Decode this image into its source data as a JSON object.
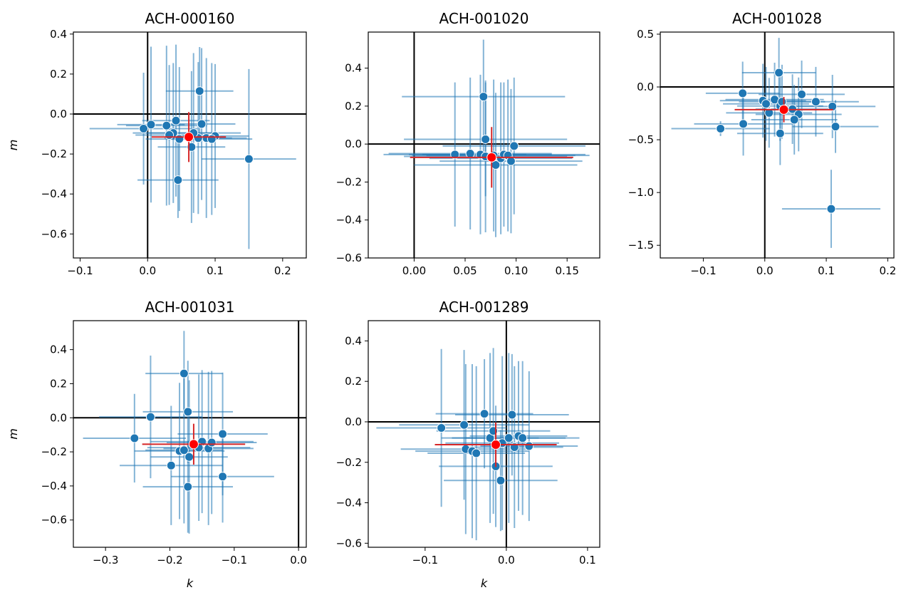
{
  "colors": {
    "point": "#1f77b4",
    "errorbar": "#1f77b4",
    "mean": "#ff0000",
    "mean_errorbar": "#d62728",
    "zero_line": "#000000"
  },
  "chart_data": [
    {
      "type": "scatter",
      "title": "ACH-000160",
      "xlabel": "",
      "ylabel": "m",
      "xlim": [
        -0.11,
        0.235
      ],
      "ylim": [
        -0.72,
        0.41
      ],
      "xticks": [
        -0.1,
        0.0,
        0.1,
        0.2
      ],
      "xtick_labels": [
        "−0.1",
        "0.0",
        "0.1",
        "0.2"
      ],
      "yticks": [
        -0.6,
        -0.4,
        -0.2,
        0.0,
        0.2,
        0.4
      ],
      "ytick_labels": [
        "−0.6",
        "−0.4",
        "−0.2",
        "0.0",
        "0.2",
        "0.4"
      ],
      "mean": {
        "x": 0.061,
        "y": -0.115,
        "xerr": 0.055,
        "yerr": 0.125
      },
      "points": [
        {
          "x": 0.077,
          "y": 0.115,
          "xerr": 0.05,
          "yerr": 0.22
        },
        {
          "x": -0.006,
          "y": -0.073,
          "xerr": 0.08,
          "yerr": 0.28
        },
        {
          "x": 0.005,
          "y": -0.053,
          "xerr": 0.05,
          "yerr": 0.39
        },
        {
          "x": 0.028,
          "y": -0.058,
          "xerr": 0.06,
          "yerr": 0.4
        },
        {
          "x": 0.042,
          "y": -0.033,
          "xerr": 0.05,
          "yerr": 0.38
        },
        {
          "x": 0.08,
          "y": -0.05,
          "xerr": 0.05,
          "yerr": 0.38
        },
        {
          "x": 0.038,
          "y": -0.095,
          "xerr": 0.06,
          "yerr": 0.35
        },
        {
          "x": 0.032,
          "y": -0.105,
          "xerr": 0.05,
          "yerr": 0.35
        },
        {
          "x": 0.047,
          "y": -0.125,
          "xerr": 0.05,
          "yerr": 0.36
        },
        {
          "x": 0.065,
          "y": -0.165,
          "xerr": 0.05,
          "yerr": 0.38
        },
        {
          "x": 0.087,
          "y": -0.12,
          "xerr": 0.06,
          "yerr": 0.4
        },
        {
          "x": 0.1,
          "y": -0.11,
          "xerr": 0.05,
          "yerr": 0.36
        },
        {
          "x": 0.095,
          "y": -0.125,
          "xerr": 0.06,
          "yerr": 0.38
        },
        {
          "x": 0.075,
          "y": -0.12,
          "xerr": 0.05,
          "yerr": 0.38
        },
        {
          "x": 0.068,
          "y": -0.095,
          "xerr": 0.07,
          "yerr": 0.4
        },
        {
          "x": 0.15,
          "y": -0.225,
          "xerr": 0.07,
          "yerr": 0.45
        },
        {
          "x": 0.045,
          "y": -0.33,
          "xerr": 0.06,
          "yerr": 0.19
        }
      ]
    },
    {
      "type": "scatter",
      "title": "ACH-001020",
      "xlabel": "",
      "ylabel": "",
      "xlim": [
        -0.045,
        0.182
      ],
      "ylim": [
        -0.6,
        0.59
      ],
      "xticks": [
        0.0,
        0.05,
        0.1,
        0.15
      ],
      "xtick_labels": [
        "0.00",
        "0.05",
        "0.10",
        "0.15"
      ],
      "yticks": [
        -0.6,
        -0.4,
        -0.2,
        0.0,
        0.2,
        0.4
      ],
      "ytick_labels": [
        "−0.6",
        "−0.4",
        "−0.2",
        "0.0",
        "0.2",
        "0.4"
      ],
      "mean": {
        "x": 0.076,
        "y": -0.07,
        "xerr": 0.08,
        "yerr": 0.16
      },
      "points": [
        {
          "x": 0.068,
          "y": 0.25,
          "xerr": 0.08,
          "yerr": 0.3
        },
        {
          "x": 0.07,
          "y": 0.025,
          "xerr": 0.08,
          "yerr": 0.3
        },
        {
          "x": 0.04,
          "y": -0.055,
          "xerr": 0.07,
          "yerr": 0.38
        },
        {
          "x": 0.055,
          "y": -0.05,
          "xerr": 0.08,
          "yerr": 0.4
        },
        {
          "x": 0.065,
          "y": -0.055,
          "xerr": 0.07,
          "yerr": 0.42
        },
        {
          "x": 0.07,
          "y": -0.065,
          "xerr": 0.08,
          "yerr": 0.4
        },
        {
          "x": 0.08,
          "y": -0.11,
          "xerr": 0.08,
          "yerr": 0.38
        },
        {
          "x": 0.085,
          "y": -0.075,
          "xerr": 0.07,
          "yerr": 0.4
        },
        {
          "x": 0.088,
          "y": -0.055,
          "xerr": 0.08,
          "yerr": 0.38
        },
        {
          "x": 0.092,
          "y": -0.06,
          "xerr": 0.08,
          "yerr": 0.4
        },
        {
          "x": 0.095,
          "y": -0.09,
          "xerr": 0.07,
          "yerr": 0.38
        },
        {
          "x": 0.098,
          "y": -0.01,
          "xerr": 0.07,
          "yerr": 0.36
        },
        {
          "x": 0.078,
          "y": -0.06,
          "xerr": 0.08,
          "yerr": 0.4
        }
      ]
    },
    {
      "type": "scatter",
      "title": "ACH-001028",
      "xlabel": "",
      "ylabel": "",
      "xlim": [
        -0.17,
        0.21
      ],
      "ylim": [
        -1.62,
        0.52
      ],
      "xticks": [
        -0.1,
        0.0,
        0.1,
        0.2
      ],
      "xtick_labels": [
        "−0.1",
        "0.0",
        "0.1",
        "0.2"
      ],
      "yticks": [
        -1.5,
        -1.0,
        -0.5,
        0.0,
        0.5
      ],
      "ytick_labels": [
        "−1.5",
        "−1.0",
        "−0.5",
        "0.0",
        "0.5"
      ],
      "mean": {
        "x": 0.031,
        "y": -0.215,
        "xerr": 0.08,
        "yerr": 0.12
      },
      "points": [
        {
          "x": 0.023,
          "y": 0.135,
          "xerr": 0.06,
          "yerr": 0.33
        },
        {
          "x": -0.036,
          "y": -0.06,
          "xerr": 0.06,
          "yerr": 0.3
        },
        {
          "x": -0.003,
          "y": -0.13,
          "xerr": 0.07,
          "yerr": 0.35
        },
        {
          "x": 0.002,
          "y": -0.16,
          "xerr": 0.07,
          "yerr": 0.35
        },
        {
          "x": 0.016,
          "y": -0.12,
          "xerr": 0.08,
          "yerr": 0.35
        },
        {
          "x": 0.025,
          "y": -0.18,
          "xerr": 0.07,
          "yerr": 0.33
        },
        {
          "x": 0.028,
          "y": -0.14,
          "xerr": 0.07,
          "yerr": 0.35
        },
        {
          "x": 0.045,
          "y": -0.21,
          "xerr": 0.06,
          "yerr": 0.33
        },
        {
          "x": 0.06,
          "y": -0.07,
          "xerr": 0.07,
          "yerr": 0.32
        },
        {
          "x": 0.055,
          "y": -0.26,
          "xerr": 0.07,
          "yerr": 0.35
        },
        {
          "x": 0.048,
          "y": -0.31,
          "xerr": 0.07,
          "yerr": 0.33
        },
        {
          "x": 0.083,
          "y": -0.14,
          "xerr": 0.07,
          "yerr": 0.33
        },
        {
          "x": 0.11,
          "y": -0.185,
          "xerr": 0.07,
          "yerr": 0.3
        },
        {
          "x": 0.115,
          "y": -0.375,
          "xerr": 0.07,
          "yerr": 0.25
        },
        {
          "x": -0.035,
          "y": -0.35,
          "xerr": 0.08,
          "yerr": 0.3
        },
        {
          "x": -0.072,
          "y": -0.395,
          "xerr": 0.08,
          "yerr": 0.07
        },
        {
          "x": 0.025,
          "y": -0.44,
          "xerr": 0.07,
          "yerr": 0.3
        },
        {
          "x": 0.007,
          "y": -0.245,
          "xerr": 0.07,
          "yerr": 0.33
        },
        {
          "x": 0.108,
          "y": -1.155,
          "xerr": 0.08,
          "yerr": 0.37
        }
      ]
    },
    {
      "type": "scatter",
      "title": "ACH-001031",
      "xlabel": "k",
      "ylabel": "m",
      "xlim": [
        -0.35,
        0.012
      ],
      "ylim": [
        -0.76,
        0.57
      ],
      "xticks": [
        -0.3,
        -0.2,
        -0.1,
        0.0
      ],
      "xtick_labels": [
        "−0.3",
        "−0.2",
        "−0.1",
        "0.0"
      ],
      "yticks": [
        -0.6,
        -0.4,
        -0.2,
        0.0,
        0.2,
        0.4
      ],
      "ytick_labels": [
        "−0.6",
        "−0.4",
        "−0.2",
        "0.0",
        "0.2",
        "0.4"
      ],
      "mean": {
        "x": -0.163,
        "y": -0.155,
        "xerr": 0.08,
        "yerr": 0.12
      },
      "points": [
        {
          "x": -0.178,
          "y": 0.26,
          "xerr": 0.06,
          "yerr": 0.25
        },
        {
          "x": -0.172,
          "y": 0.035,
          "xerr": 0.07,
          "yerr": 0.3
        },
        {
          "x": -0.23,
          "y": 0.005,
          "xerr": 0.08,
          "yerr": 0.36
        },
        {
          "x": -0.255,
          "y": -0.12,
          "xerr": 0.08,
          "yerr": 0.26
        },
        {
          "x": -0.185,
          "y": -0.195,
          "xerr": 0.07,
          "yerr": 0.4
        },
        {
          "x": -0.17,
          "y": -0.23,
          "xerr": 0.06,
          "yerr": 0.45
        },
        {
          "x": -0.178,
          "y": -0.19,
          "xerr": 0.06,
          "yerr": 0.43
        },
        {
          "x": -0.15,
          "y": -0.14,
          "xerr": 0.08,
          "yerr": 0.42
        },
        {
          "x": -0.14,
          "y": -0.18,
          "xerr": 0.07,
          "yerr": 0.45
        },
        {
          "x": -0.135,
          "y": -0.145,
          "xerr": 0.07,
          "yerr": 0.42
        },
        {
          "x": -0.118,
          "y": -0.095,
          "xerr": 0.07,
          "yerr": 0.36
        },
        {
          "x": -0.155,
          "y": -0.175,
          "xerr": 0.08,
          "yerr": 0.43
        },
        {
          "x": -0.198,
          "y": -0.28,
          "xerr": 0.08,
          "yerr": 0.35
        },
        {
          "x": -0.118,
          "y": -0.345,
          "xerr": 0.08,
          "yerr": 0.27
        },
        {
          "x": -0.172,
          "y": -0.405,
          "xerr": 0.07,
          "yerr": 0.27
        }
      ]
    },
    {
      "type": "scatter",
      "title": "ACH-001289",
      "xlabel": "k",
      "ylabel": "",
      "xlim": [
        -0.17,
        0.115
      ],
      "ylim": [
        -0.62,
        0.5
      ],
      "xticks": [
        -0.1,
        0.0,
        0.1
      ],
      "xtick_labels": [
        "−0.1",
        "0.0",
        "0.1"
      ],
      "yticks": [
        -0.6,
        -0.4,
        -0.2,
        0.0,
        0.2,
        0.4
      ],
      "ytick_labels": [
        "−0.6",
        "−0.4",
        "−0.2",
        "0.0",
        "0.2",
        "0.4"
      ],
      "mean": {
        "x": -0.013,
        "y": -0.113,
        "xerr": 0.075,
        "yerr": 0.11
      },
      "points": [
        {
          "x": -0.027,
          "y": 0.04,
          "xerr": 0.06,
          "yerr": 0.27
        },
        {
          "x": 0.007,
          "y": 0.035,
          "xerr": 0.07,
          "yerr": 0.3
        },
        {
          "x": -0.08,
          "y": -0.03,
          "xerr": 0.08,
          "yerr": 0.39
        },
        {
          "x": -0.052,
          "y": -0.015,
          "xerr": 0.08,
          "yerr": 0.37
        },
        {
          "x": -0.05,
          "y": -0.135,
          "xerr": 0.08,
          "yerr": 0.42
        },
        {
          "x": -0.042,
          "y": -0.145,
          "xerr": 0.07,
          "yerr": 0.43
        },
        {
          "x": -0.037,
          "y": -0.155,
          "xerr": 0.06,
          "yerr": 0.43
        },
        {
          "x": -0.02,
          "y": -0.08,
          "xerr": 0.06,
          "yerr": 0.42
        },
        {
          "x": -0.016,
          "y": -0.045,
          "xerr": 0.07,
          "yerr": 0.41
        },
        {
          "x": -0.005,
          "y": -0.105,
          "xerr": 0.07,
          "yerr": 0.43
        },
        {
          "x": 0.003,
          "y": -0.08,
          "xerr": 0.07,
          "yerr": 0.42
        },
        {
          "x": 0.01,
          "y": -0.125,
          "xerr": 0.06,
          "yerr": 0.4
        },
        {
          "x": 0.015,
          "y": -0.07,
          "xerr": 0.06,
          "yerr": 0.37
        },
        {
          "x": 0.02,
          "y": -0.08,
          "xerr": 0.07,
          "yerr": 0.38
        },
        {
          "x": 0.028,
          "y": -0.12,
          "xerr": 0.06,
          "yerr": 0.37
        },
        {
          "x": -0.013,
          "y": -0.22,
          "xerr": 0.07,
          "yerr": 0.3
        },
        {
          "x": -0.007,
          "y": -0.29,
          "xerr": 0.07,
          "yerr": 0.25
        }
      ]
    }
  ]
}
